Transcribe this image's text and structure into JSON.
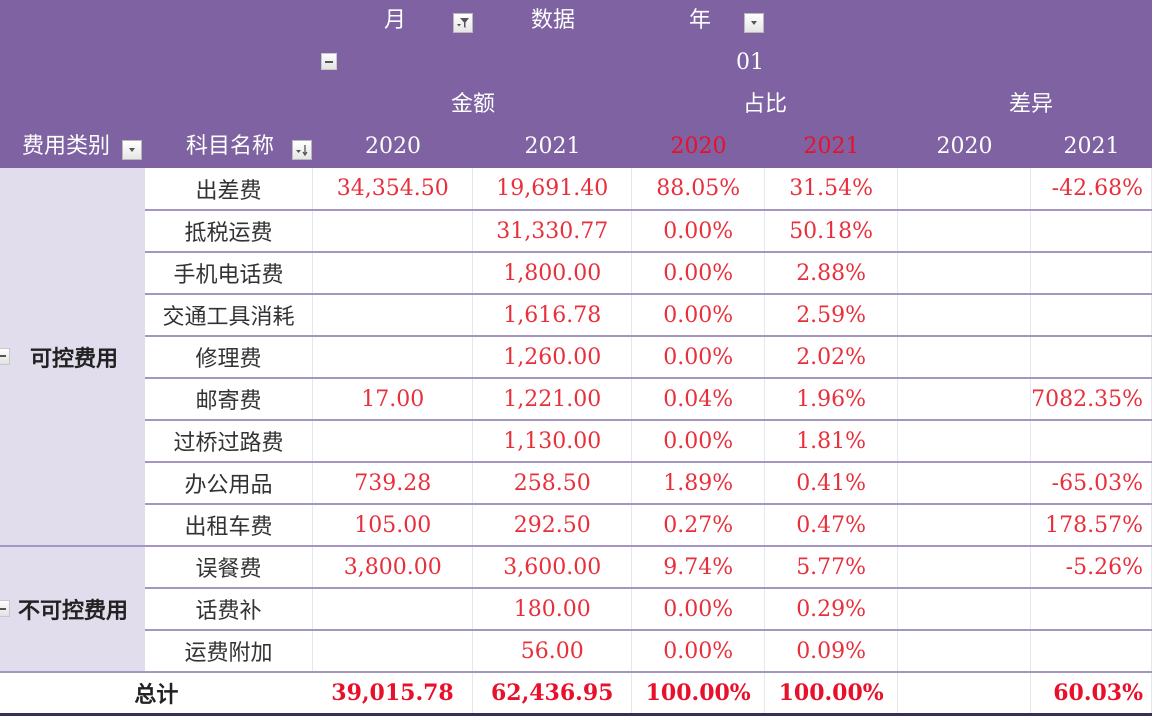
{
  "header": {
    "row1": {
      "month_label": "月",
      "data_label": "数据",
      "year_label": "年"
    },
    "row2": {
      "month_value": "01"
    },
    "row3": {
      "amount_group": "金额",
      "ratio_group": "占比",
      "diff_group": "差异"
    },
    "row4": {
      "category_field": "费用类别",
      "item_field": "科目名称",
      "years": [
        "2020",
        "2021",
        "2020",
        "2021",
        "2020",
        "2021"
      ]
    }
  },
  "icons": {
    "month_filter": "filter-dropdown-icon",
    "year_dropdown": "dropdown-arrow-icon",
    "category_dropdown": "dropdown-arrow-icon",
    "item_sort": "sort-dropdown-icon",
    "collapse": "minus-collapse-icon"
  },
  "colors": {
    "header_bg": "#7e62a1",
    "category_bg": "#e2ddec",
    "value_red": "#e8303c",
    "ratio_year_red": "#e8102a",
    "row_border": "#a496c0"
  },
  "groups": [
    {
      "category": "可控费用",
      "rows": [
        {
          "item": "出差费",
          "amt2020": "34,354.50",
          "amt2021": "19,691.40",
          "pct2020": "88.05%",
          "pct2021": "31.54%",
          "diff2020": "",
          "diff2021": "-42.68%"
        },
        {
          "item": "抵税运费",
          "amt2020": "",
          "amt2021": "31,330.77",
          "pct2020": "0.00%",
          "pct2021": "50.18%",
          "diff2020": "",
          "diff2021": ""
        },
        {
          "item": "手机电话费",
          "amt2020": "",
          "amt2021": "1,800.00",
          "pct2020": "0.00%",
          "pct2021": "2.88%",
          "diff2020": "",
          "diff2021": ""
        },
        {
          "item": "交通工具消耗",
          "amt2020": "",
          "amt2021": "1,616.78",
          "pct2020": "0.00%",
          "pct2021": "2.59%",
          "diff2020": "",
          "diff2021": ""
        },
        {
          "item": "修理费",
          "amt2020": "",
          "amt2021": "1,260.00",
          "pct2020": "0.00%",
          "pct2021": "2.02%",
          "diff2020": "",
          "diff2021": ""
        },
        {
          "item": "邮寄费",
          "amt2020": "17.00",
          "amt2021": "1,221.00",
          "pct2020": "0.04%",
          "pct2021": "1.96%",
          "diff2020": "",
          "diff2021": "7082.35%"
        },
        {
          "item": "过桥过路费",
          "amt2020": "",
          "amt2021": "1,130.00",
          "pct2020": "0.00%",
          "pct2021": "1.81%",
          "diff2020": "",
          "diff2021": ""
        },
        {
          "item": "办公用品",
          "amt2020": "739.28",
          "amt2021": "258.50",
          "pct2020": "1.89%",
          "pct2021": "0.41%",
          "diff2020": "",
          "diff2021": "-65.03%"
        },
        {
          "item": "出租车费",
          "amt2020": "105.00",
          "amt2021": "292.50",
          "pct2020": "0.27%",
          "pct2021": "0.47%",
          "diff2020": "",
          "diff2021": "178.57%"
        }
      ]
    },
    {
      "category": "不可控费用",
      "rows": [
        {
          "item": "误餐费",
          "amt2020": "3,800.00",
          "amt2021": "3,600.00",
          "pct2020": "9.74%",
          "pct2021": "5.77%",
          "diff2020": "",
          "diff2021": "-5.26%"
        },
        {
          "item": "话费补",
          "amt2020": "",
          "amt2021": "180.00",
          "pct2020": "0.00%",
          "pct2021": "0.29%",
          "diff2020": "",
          "diff2021": ""
        },
        {
          "item": "运费附加",
          "amt2020": "",
          "amt2021": "56.00",
          "pct2020": "0.00%",
          "pct2021": "0.09%",
          "diff2020": "",
          "diff2021": ""
        }
      ]
    }
  ],
  "total": {
    "label": "总计",
    "amt2020": "39,015.78",
    "amt2021": "62,436.95",
    "pct2020": "100.00%",
    "pct2021": "100.00%",
    "diff2020": "",
    "diff2021": "60.03%"
  }
}
